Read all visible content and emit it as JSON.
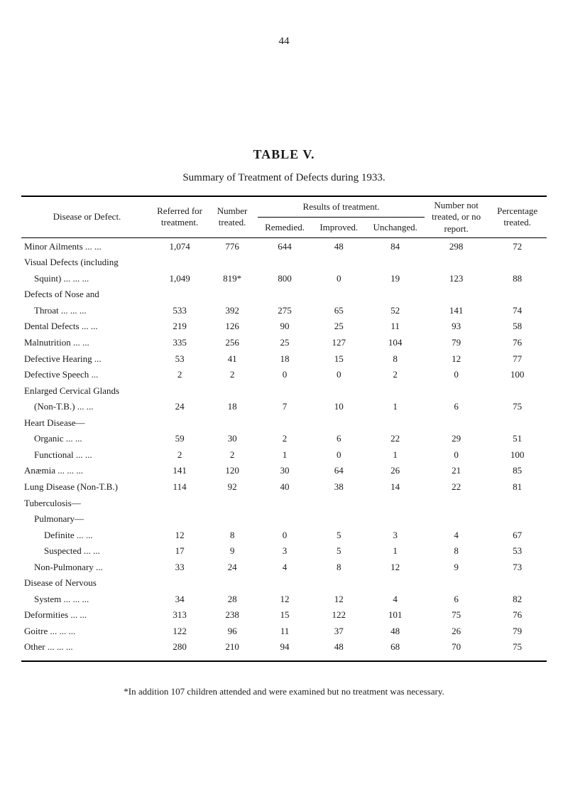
{
  "page_number": "44",
  "table_title": "TABLE V.",
  "table_subtitle": "Summary of Treatment of Defects during 1933.",
  "columns": {
    "disease": "Disease or Defect.",
    "referred": "Referred for treatment.",
    "number_treated": "Number treated.",
    "results_group": "Results of treatment.",
    "remedied": "Remedied.",
    "improved": "Improved.",
    "unchanged": "Unchanged.",
    "not_treated": "Number not treated, or no report.",
    "percentage": "Percentage treated."
  },
  "rows": [
    {
      "kind": "data",
      "indent": 0,
      "label": "Minor Ailments ... ...",
      "referred": "1,074",
      "treated": "776",
      "remedied": "644",
      "improved": "48",
      "unchanged": "84",
      "not_treated": "298",
      "pct": "72"
    },
    {
      "kind": "header",
      "indent": 0,
      "label": "Visual Defects (including"
    },
    {
      "kind": "data",
      "indent": 1,
      "label": "Squint) ... ... ...",
      "referred": "1,049",
      "treated": "819*",
      "remedied": "800",
      "improved": "0",
      "unchanged": "19",
      "not_treated": "123",
      "pct": "88"
    },
    {
      "kind": "header",
      "indent": 0,
      "label": "Defects of Nose and"
    },
    {
      "kind": "data",
      "indent": 1,
      "label": "Throat ... ... ...",
      "referred": "533",
      "treated": "392",
      "remedied": "275",
      "improved": "65",
      "unchanged": "52",
      "not_treated": "141",
      "pct": "74"
    },
    {
      "kind": "data",
      "indent": 0,
      "label": "Dental Defects ... ...",
      "referred": "219",
      "treated": "126",
      "remedied": "90",
      "improved": "25",
      "unchanged": "11",
      "not_treated": "93",
      "pct": "58"
    },
    {
      "kind": "data",
      "indent": 0,
      "label": "Malnutrition ... ...",
      "referred": "335",
      "treated": "256",
      "remedied": "25",
      "improved": "127",
      "unchanged": "104",
      "not_treated": "79",
      "pct": "76"
    },
    {
      "kind": "data",
      "indent": 0,
      "label": "Defective Hearing ...",
      "referred": "53",
      "treated": "41",
      "remedied": "18",
      "improved": "15",
      "unchanged": "8",
      "not_treated": "12",
      "pct": "77"
    },
    {
      "kind": "data",
      "indent": 0,
      "label": "Defective Speech ...",
      "referred": "2",
      "treated": "2",
      "remedied": "0",
      "improved": "0",
      "unchanged": "2",
      "not_treated": "0",
      "pct": "100"
    },
    {
      "kind": "header",
      "indent": 0,
      "label": "Enlarged Cervical Glands"
    },
    {
      "kind": "data",
      "indent": 1,
      "label": "(Non-T.B.) ... ...",
      "referred": "24",
      "treated": "18",
      "remedied": "7",
      "improved": "10",
      "unchanged": "1",
      "not_treated": "6",
      "pct": "75"
    },
    {
      "kind": "header",
      "indent": 0,
      "label": "Heart Disease—"
    },
    {
      "kind": "data",
      "indent": 1,
      "label": "Organic ... ...",
      "referred": "59",
      "treated": "30",
      "remedied": "2",
      "improved": "6",
      "unchanged": "22",
      "not_treated": "29",
      "pct": "51"
    },
    {
      "kind": "data",
      "indent": 1,
      "label": "Functional ... ...",
      "referred": "2",
      "treated": "2",
      "remedied": "1",
      "improved": "0",
      "unchanged": "1",
      "not_treated": "0",
      "pct": "100"
    },
    {
      "kind": "data",
      "indent": 0,
      "label": "Anæmia ... ... ...",
      "referred": "141",
      "treated": "120",
      "remedied": "30",
      "improved": "64",
      "unchanged": "26",
      "not_treated": "21",
      "pct": "85"
    },
    {
      "kind": "data",
      "indent": 0,
      "label": "Lung Disease (Non-T.B.)",
      "referred": "114",
      "treated": "92",
      "remedied": "40",
      "improved": "38",
      "unchanged": "14",
      "not_treated": "22",
      "pct": "81"
    },
    {
      "kind": "header",
      "indent": 0,
      "label": "Tuberculosis—"
    },
    {
      "kind": "header",
      "indent": 1,
      "label": "Pulmonary—"
    },
    {
      "kind": "data",
      "indent": 2,
      "label": "Definite ... ...",
      "referred": "12",
      "treated": "8",
      "remedied": "0",
      "improved": "5",
      "unchanged": "3",
      "not_treated": "4",
      "pct": "67"
    },
    {
      "kind": "data",
      "indent": 2,
      "label": "Suspected ... ...",
      "referred": "17",
      "treated": "9",
      "remedied": "3",
      "improved": "5",
      "unchanged": "1",
      "not_treated": "8",
      "pct": "53"
    },
    {
      "kind": "data",
      "indent": 1,
      "label": "Non-Pulmonary ...",
      "referred": "33",
      "treated": "24",
      "remedied": "4",
      "improved": "8",
      "unchanged": "12",
      "not_treated": "9",
      "pct": "73"
    },
    {
      "kind": "header",
      "indent": 0,
      "label": "Disease of Nervous"
    },
    {
      "kind": "data",
      "indent": 1,
      "label": "System ... ... ...",
      "referred": "34",
      "treated": "28",
      "remedied": "12",
      "improved": "12",
      "unchanged": "4",
      "not_treated": "6",
      "pct": "82"
    },
    {
      "kind": "data",
      "indent": 0,
      "label": "Deformities ... ...",
      "referred": "313",
      "treated": "238",
      "remedied": "15",
      "improved": "122",
      "unchanged": "101",
      "not_treated": "75",
      "pct": "76"
    },
    {
      "kind": "data",
      "indent": 0,
      "label": "Goitre ... ... ...",
      "referred": "122",
      "treated": "96",
      "remedied": "11",
      "improved": "37",
      "unchanged": "48",
      "not_treated": "26",
      "pct": "79"
    },
    {
      "kind": "data",
      "indent": 0,
      "label": "Other ... ... ...",
      "referred": "280",
      "treated": "210",
      "remedied": "94",
      "improved": "48",
      "unchanged": "68",
      "not_treated": "70",
      "pct": "75"
    }
  ],
  "footnote": "*In addition 107 children attended and were examined but no treatment was necessary."
}
